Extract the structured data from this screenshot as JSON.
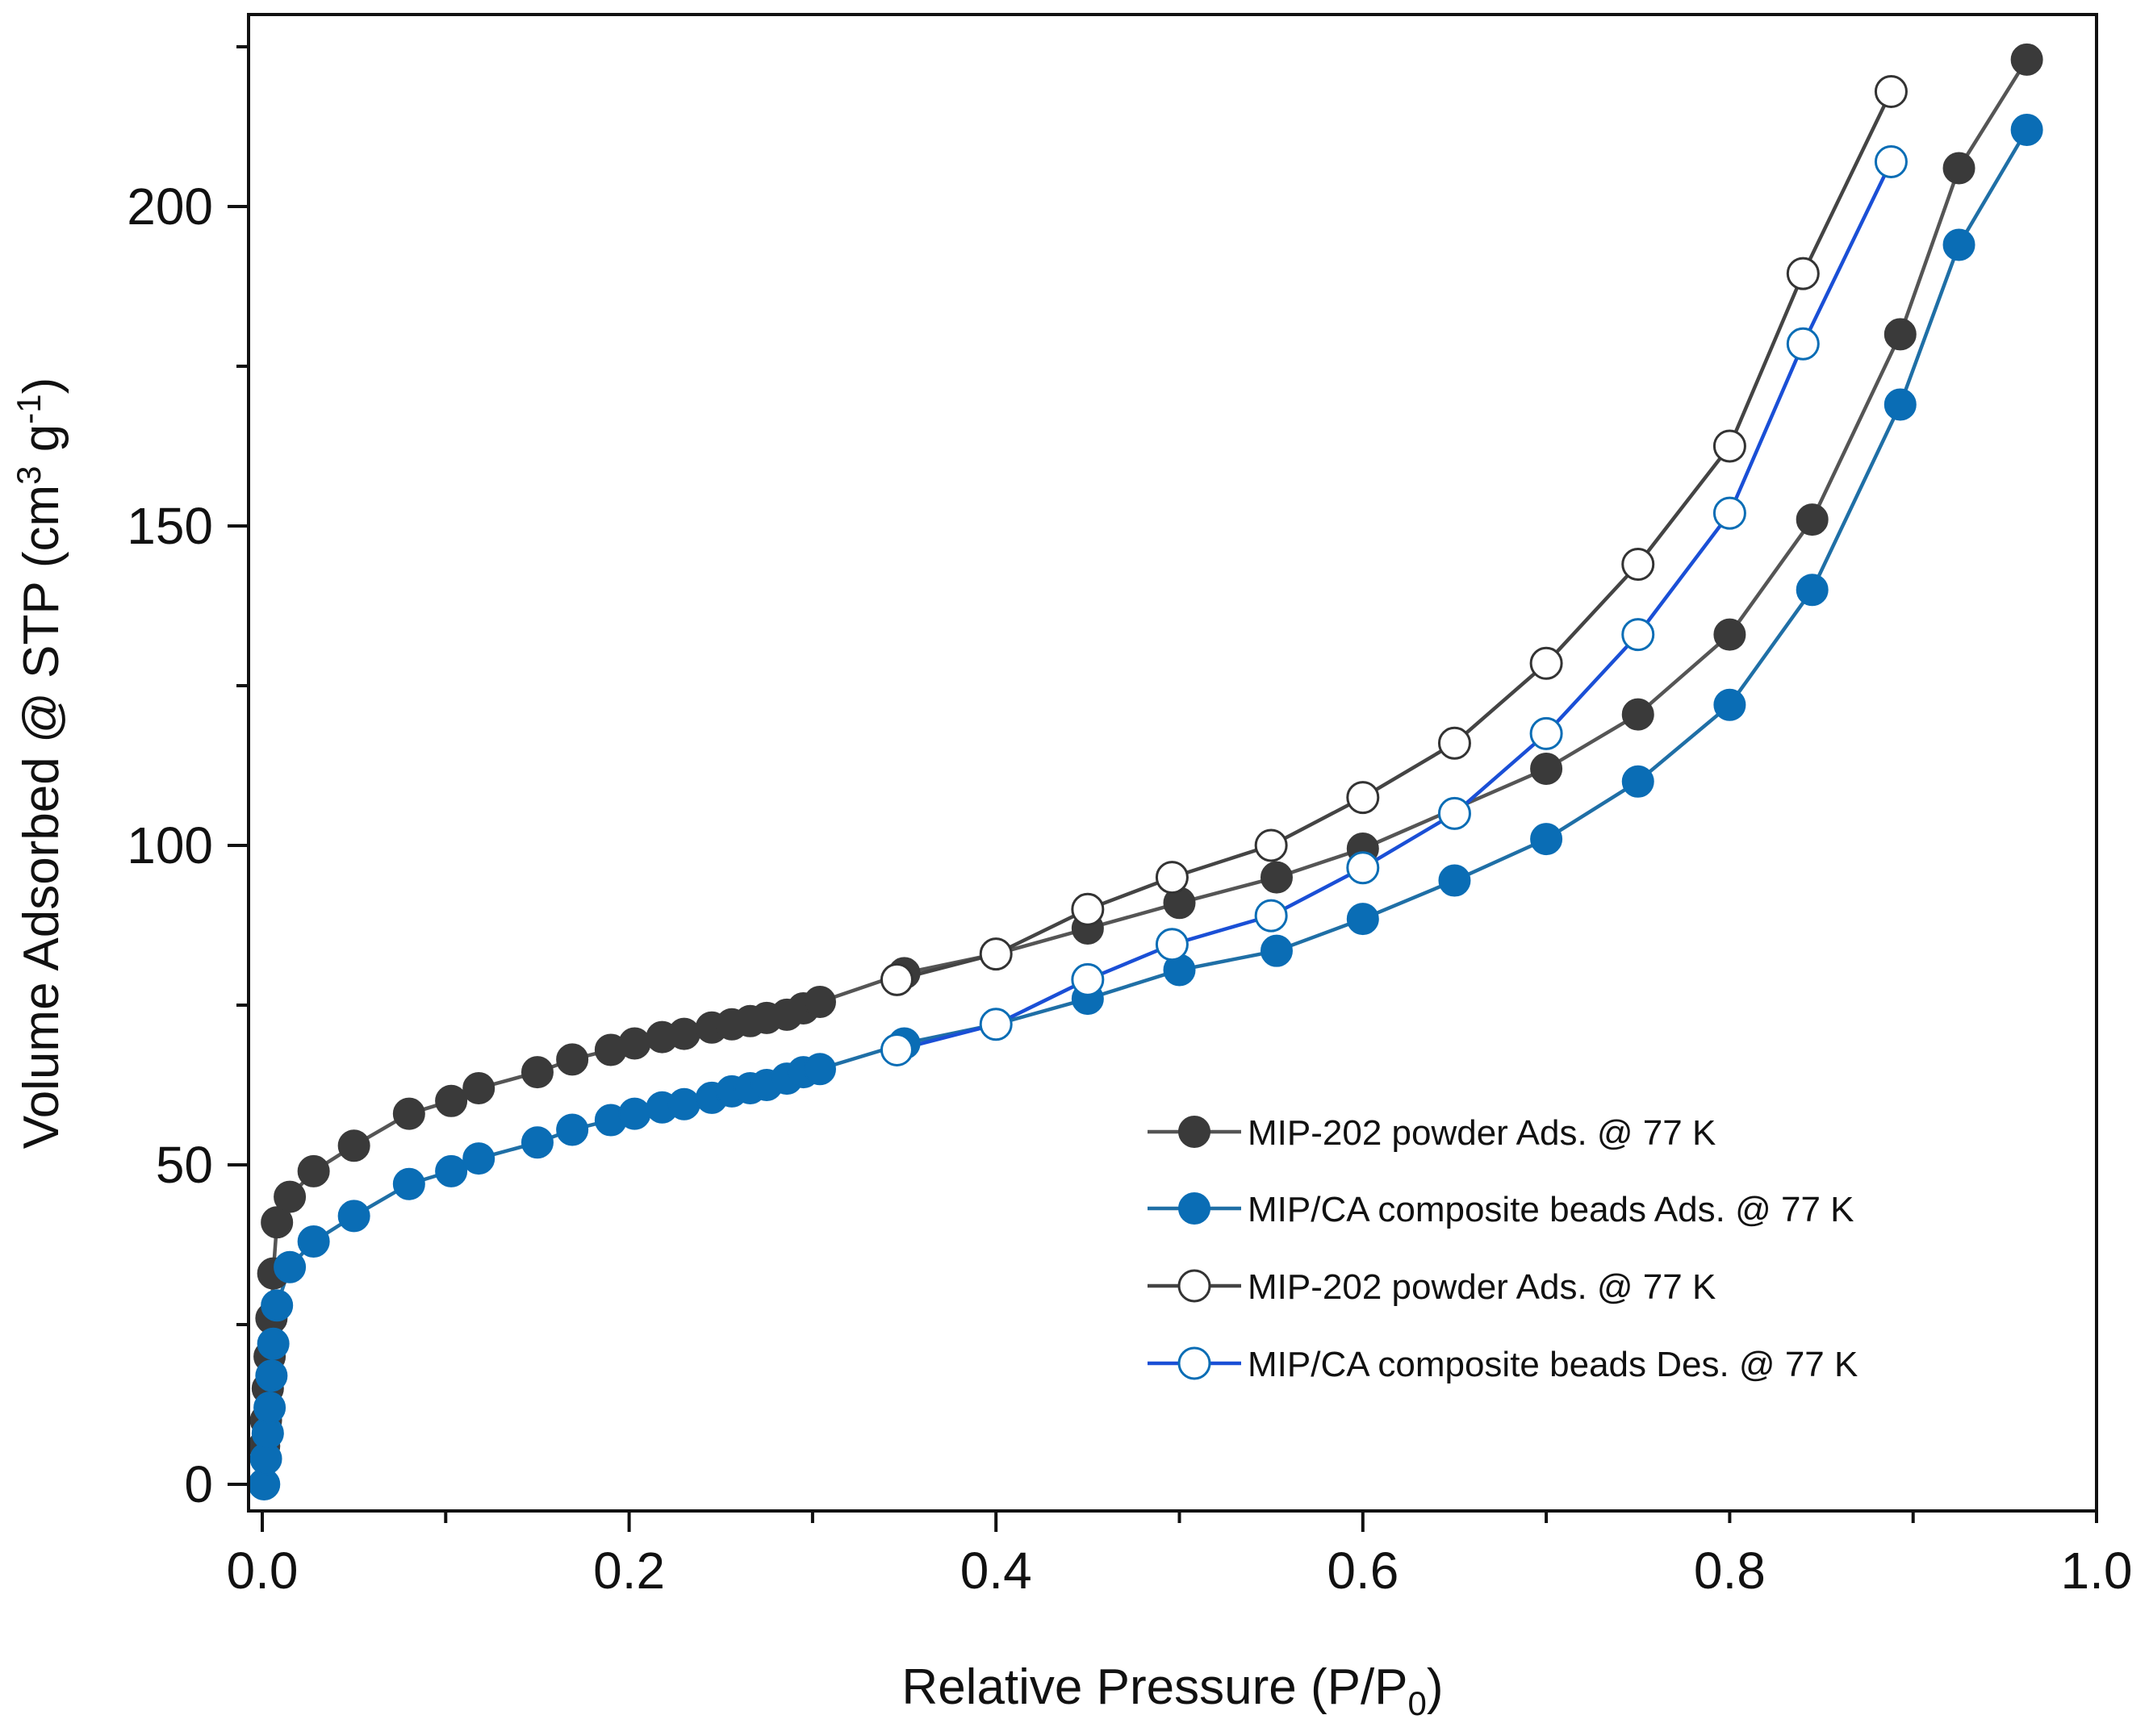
{
  "chart_data": {
    "type": "line",
    "title": "",
    "xlabel": "Relative Pressure (P/P",
    "xlabel_sub": "0",
    "xlabel_end": ")",
    "ylabel": "Volume Adsorbed @ STP (cm",
    "ylabel_sup1": "3",
    "ylabel_mid": " g",
    "ylabel_sup2": "-1",
    "ylabel_end": ")",
    "xlim": [
      0.0,
      1.0
    ],
    "ylim": [
      -5,
      227
    ],
    "xticks": [
      0.0,
      0.2,
      0.4,
      0.6,
      0.8,
      1.0
    ],
    "xtick_labels": [
      "0.0",
      "0.2",
      "0.4",
      "0.6",
      "0.8",
      "1.0"
    ],
    "yticks": [
      0,
      50,
      100,
      150,
      200
    ],
    "ytick_labels": [
      "0",
      "50",
      "100",
      "150",
      "200"
    ],
    "legend_position": "bottom-right",
    "series": [
      {
        "name": "MIP-202 powder Ads. @ 77 K",
        "marker": "filled",
        "line_color": "#555555",
        "marker_fill": "#3a3a3a",
        "marker_edge": "#3a3a3a",
        "x": [
          0.001,
          0.002,
          0.003,
          0.004,
          0.005,
          0.006,
          0.008,
          0.015,
          0.028,
          0.05,
          0.08,
          0.103,
          0.118,
          0.15,
          0.169,
          0.19,
          0.203,
          0.218,
          0.23,
          0.245,
          0.256,
          0.266,
          0.275,
          0.286,
          0.295,
          0.304,
          0.35,
          0.4,
          0.45,
          0.5,
          0.553,
          0.6,
          0.7,
          0.75,
          0.8,
          0.845,
          0.893,
          0.925,
          0.962
        ],
        "y": [
          6,
          10,
          15,
          20,
          26,
          33,
          41,
          45,
          49,
          53,
          58,
          60,
          62,
          64.5,
          66.5,
          68,
          69,
          70,
          70.5,
          71.5,
          72,
          72.5,
          73,
          73.5,
          74.5,
          75.5,
          80,
          83,
          87,
          91,
          95,
          99.5,
          112,
          120.5,
          133,
          151,
          180,
          206,
          223
        ]
      },
      {
        "name": "MIP/CA composite beads Ads. @ 77 K",
        "marker": "filled",
        "line_color": "#1f6fa6",
        "marker_fill": "#0a6db5",
        "marker_edge": "#0a6db5",
        "x": [
          0.001,
          0.002,
          0.003,
          0.004,
          0.005,
          0.006,
          0.008,
          0.015,
          0.028,
          0.05,
          0.08,
          0.103,
          0.118,
          0.15,
          0.169,
          0.19,
          0.203,
          0.218,
          0.23,
          0.245,
          0.256,
          0.266,
          0.275,
          0.286,
          0.295,
          0.304,
          0.35,
          0.4,
          0.45,
          0.5,
          0.553,
          0.6,
          0.65,
          0.7,
          0.75,
          0.8,
          0.845,
          0.893,
          0.925,
          0.962
        ],
        "y": [
          0,
          4,
          8,
          12,
          17,
          22,
          28,
          34,
          38,
          42,
          47,
          49,
          51,
          53.5,
          55.5,
          57,
          58,
          59,
          59.5,
          60.5,
          61.5,
          62,
          62.5,
          63.5,
          64.5,
          65,
          69,
          72,
          76,
          80.5,
          83.5,
          88.5,
          94.5,
          101,
          110,
          122,
          140,
          169,
          194,
          212
        ]
      },
      {
        "name": "MIP-202 powder Ads. @ 77 K",
        "marker": "open",
        "line_color": "#444444",
        "marker_fill": "#ffffff",
        "marker_edge": "#333333",
        "x": [
          0.346,
          0.4,
          0.45,
          0.496,
          0.55,
          0.6,
          0.65,
          0.7,
          0.75,
          0.8,
          0.84,
          0.888
        ],
        "y": [
          79,
          83,
          90,
          95,
          100,
          107.5,
          116,
          128.5,
          144,
          162.5,
          189.5,
          218
        ]
      },
      {
        "name": "MIP/CA composite beads Des. @ 77 K",
        "marker": "open",
        "line_color": "#1a4fd6",
        "marker_fill": "#ffffff",
        "marker_edge": "#0a6db5",
        "x": [
          0.346,
          0.4,
          0.45,
          0.496,
          0.55,
          0.6,
          0.65,
          0.7,
          0.75,
          0.8,
          0.84,
          0.888
        ],
        "y": [
          68,
          72,
          79,
          84.5,
          89,
          96.5,
          105,
          117.5,
          133,
          152,
          178.5,
          207
        ]
      }
    ]
  }
}
